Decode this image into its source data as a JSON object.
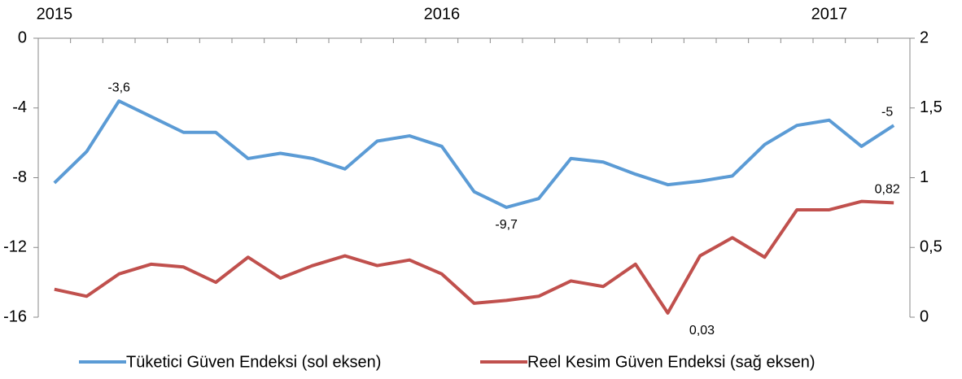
{
  "chart_data": {
    "type": "line",
    "categories": [
      "2015",
      null,
      null,
      null,
      null,
      null,
      null,
      null,
      null,
      null,
      null,
      null,
      "2016",
      null,
      null,
      null,
      null,
      null,
      null,
      null,
      null,
      null,
      null,
      null,
      "2017",
      null,
      null
    ],
    "series": [
      {
        "name": "Tüketici Güven Endeksi (sol eksen)",
        "color": "#5b9bd5",
        "axis": "y",
        "values": [
          -8.3,
          -6.5,
          -3.6,
          -4.5,
          -5.4,
          -5.4,
          -6.9,
          -6.6,
          -6.9,
          -7.5,
          -5.9,
          -5.6,
          -6.2,
          -8.8,
          -9.7,
          -9.2,
          -6.9,
          -7.1,
          -7.8,
          -8.4,
          -8.2,
          -7.9,
          -6.1,
          -5.0,
          -4.7,
          -6.2,
          -5
        ],
        "value_labels": [
          null,
          null,
          "-3,6",
          null,
          null,
          null,
          null,
          null,
          null,
          null,
          null,
          null,
          null,
          null,
          "-9,7",
          null,
          null,
          null,
          null,
          null,
          null,
          null,
          null,
          null,
          null,
          null,
          "-5"
        ]
      },
      {
        "name": "Reel Kesim Güven Endeksi (sağ eksen)",
        "color": "#c0504d",
        "axis": "y2",
        "values": [
          0.2,
          0.15,
          0.31,
          0.38,
          0.36,
          0.25,
          0.43,
          0.28,
          0.37,
          0.44,
          0.37,
          0.41,
          0.31,
          0.1,
          0.12,
          0.15,
          0.26,
          0.22,
          0.38,
          0.03,
          0.44,
          0.57,
          0.43,
          0.77,
          0.77,
          0.83,
          0.82
        ],
        "value_labels": [
          null,
          null,
          null,
          null,
          null,
          null,
          null,
          null,
          null,
          null,
          null,
          null,
          null,
          null,
          null,
          null,
          null,
          null,
          null,
          "0,03",
          null,
          null,
          null,
          null,
          null,
          null,
          "0,82"
        ]
      }
    ],
    "ylim": [
      -16,
      0
    ],
    "yticks": [
      0,
      -4,
      -8,
      -12,
      -16
    ],
    "y2lim": [
      0,
      2
    ],
    "y2ticks": [
      0,
      {
        "value": 0.5,
        "label": "0,5"
      },
      1,
      {
        "value": 1.5,
        "label": "1,5"
      },
      2
    ],
    "legend": "bottom"
  }
}
